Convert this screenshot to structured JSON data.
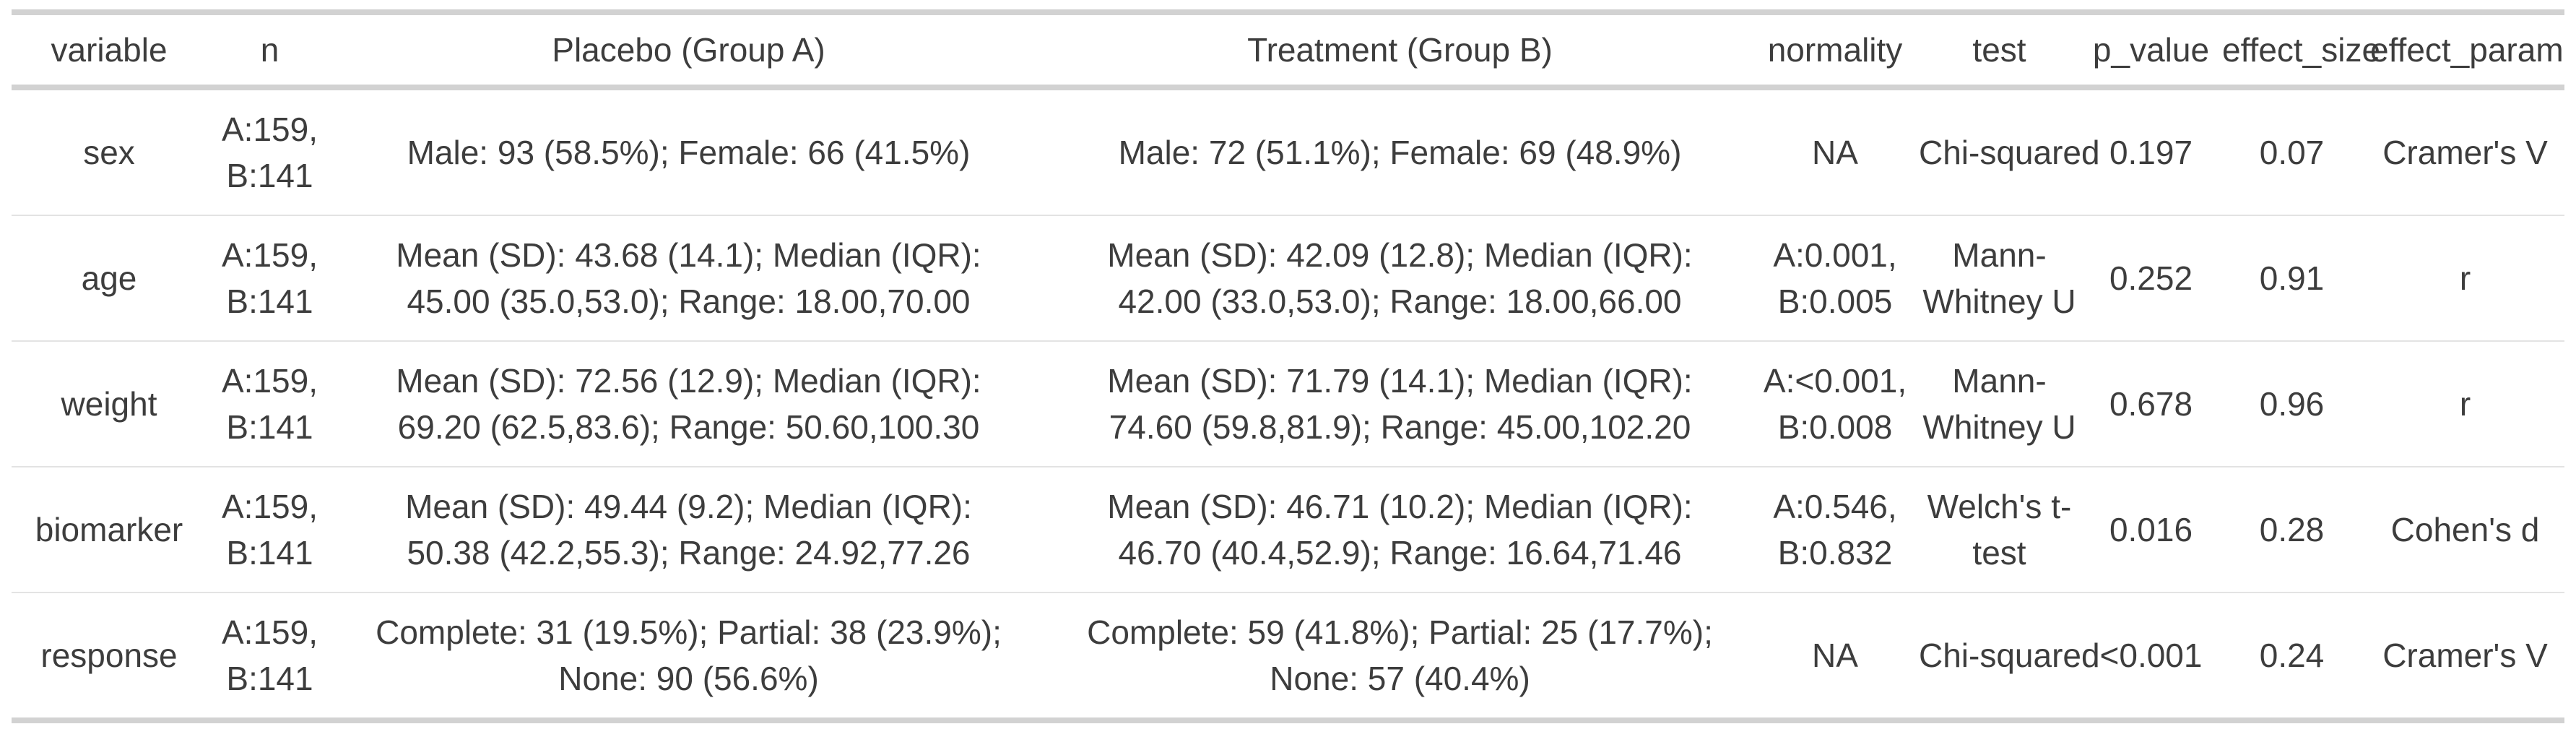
{
  "chart_data": {
    "type": "table",
    "columns": [
      "variable",
      "n",
      "Placebo (Group A)",
      "Treatment (Group B)",
      "normality",
      "test",
      "p_value",
      "effect_size",
      "effect_param"
    ],
    "rows": [
      {
        "variable": "sex",
        "n": "A:159,\nB:141",
        "placebo_group_a": "Male: 93 (58.5%); Female: 66 (41.5%)",
        "treatment_group_b": "Male: 72 (51.1%); Female: 69 (48.9%)",
        "normality": "NA",
        "test": "Chi-squared",
        "p_value": "0.197",
        "effect_size": "0.07",
        "effect_param": "Cramer's V"
      },
      {
        "variable": "age",
        "n": "A:159,\nB:141",
        "placebo_group_a": "Mean (SD): 43.68 (14.1); Median (IQR):\n45.00 (35.0,53.0); Range: 18.00,70.00",
        "treatment_group_b": "Mean (SD): 42.09 (12.8); Median (IQR):\n42.00 (33.0,53.0); Range: 18.00,66.00",
        "normality": "A:0.001,\nB:0.005",
        "test": "Mann-\nWhitney U",
        "p_value": "0.252",
        "effect_size": "0.91",
        "effect_param": "r"
      },
      {
        "variable": "weight",
        "n": "A:159,\nB:141",
        "placebo_group_a": "Mean (SD): 72.56 (12.9); Median (IQR):\n69.20 (62.5,83.6); Range: 50.60,100.30",
        "treatment_group_b": "Mean (SD): 71.79 (14.1); Median (IQR):\n74.60 (59.8,81.9); Range: 45.00,102.20",
        "normality": "A:<0.001,\nB:0.008",
        "test": "Mann-\nWhitney U",
        "p_value": "0.678",
        "effect_size": "0.96",
        "effect_param": "r"
      },
      {
        "variable": "biomarker",
        "n": "A:159,\nB:141",
        "placebo_group_a": "Mean (SD): 49.44 (9.2); Median (IQR):\n50.38 (42.2,55.3); Range: 24.92,77.26",
        "treatment_group_b": "Mean (SD): 46.71 (10.2); Median (IQR):\n46.70 (40.4,52.9); Range: 16.64,71.46",
        "normality": "A:0.546,\nB:0.832",
        "test": "Welch's t-\ntest",
        "p_value": "0.016",
        "effect_size": "0.28",
        "effect_param": "Cohen's d"
      },
      {
        "variable": "response",
        "n": "A:159,\nB:141",
        "placebo_group_a": "Complete: 31 (19.5%); Partial: 38 (23.9%);\nNone: 90 (56.6%)",
        "treatment_group_b": "Complete: 59 (41.8%); Partial: 25 (17.7%);\nNone: 57 (40.4%)",
        "normality": "NA",
        "test": "Chi-squared",
        "p_value": "<0.001",
        "effect_size": "0.24",
        "effect_param": "Cramer's V"
      }
    ],
    "colors": {
      "text": "#3d3d3d",
      "rule_heavy": "#d2d2d2",
      "rule_light": "#e3e3e3",
      "background": "#ffffff"
    }
  }
}
